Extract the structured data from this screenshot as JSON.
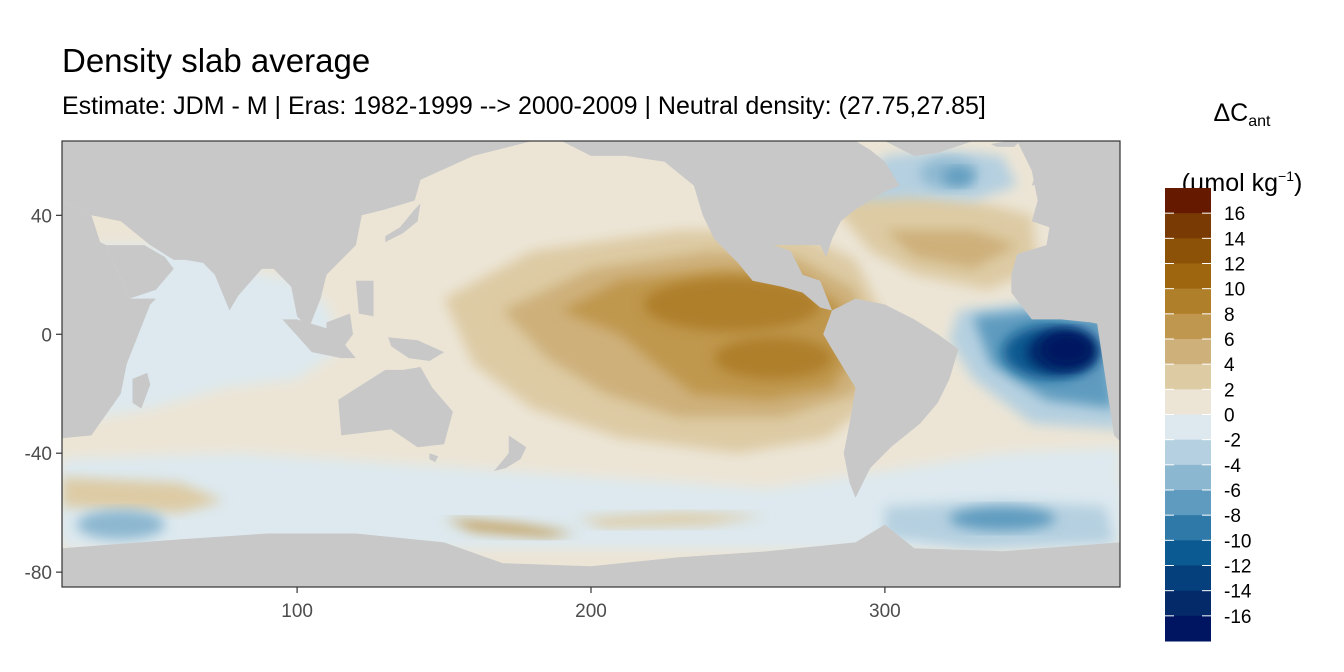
{
  "chart_data": {
    "type": "heatmap",
    "title": "Density slab average",
    "subtitle": "Estimate: JDM - M | Eras: 1982-1999 --> 2000-2009 | Neutral density: (27.75,27.85]",
    "xlabel": "",
    "ylabel": "",
    "xlim": [
      20,
      380
    ],
    "ylim": [
      -85,
      65
    ],
    "x_ticks": [
      100,
      200,
      300
    ],
    "y_ticks": [
      40,
      0,
      -40,
      -80
    ],
    "legend": {
      "title_main": "ΔC",
      "title_sub": "ant",
      "unit_prefix": "(µmol kg",
      "unit_sup": "−1",
      "unit_suffix": ")",
      "levels": [
        16,
        14,
        12,
        10,
        8,
        6,
        4,
        2,
        0,
        -2,
        -4,
        -6,
        -8,
        -10,
        -12,
        -14,
        -16
      ],
      "colors": [
        "#651a00",
        "#7a3a03",
        "#8c5207",
        "#9e670f",
        "#af7f2a",
        "#bf974e",
        "#ceb07a",
        "#ddcba4",
        "#ece5d6",
        "#dde9ef",
        "#b5d0e0",
        "#8cb7d0",
        "#5e9bbf",
        "#2f79a8",
        "#0b5b92",
        "#053f7c",
        "#052a6a",
        "#001561"
      ],
      "position": "right"
    },
    "land_color": "#c8c8c8",
    "regions": [
      {
        "name": "pacific-background",
        "value": 1
      },
      {
        "name": "indian-ocean-north",
        "value": -1
      },
      {
        "name": "southern-ocean-band",
        "value": -1
      },
      {
        "name": "pacific-tropical-maximum",
        "value": 9
      },
      {
        "name": "pacific-southeast-maximum",
        "value": 9
      },
      {
        "name": "atlantic-north",
        "value": 3
      },
      {
        "name": "atlantic-labrador-minimum",
        "value": -8
      },
      {
        "name": "atlantic-equatorial-minimum",
        "value": -17
      },
      {
        "name": "weddell-minimum",
        "value": -7
      },
      {
        "name": "indian-sector-southern-minimum",
        "value": -6
      },
      {
        "name": "ross-sea-maximum",
        "value": 6
      }
    ]
  }
}
